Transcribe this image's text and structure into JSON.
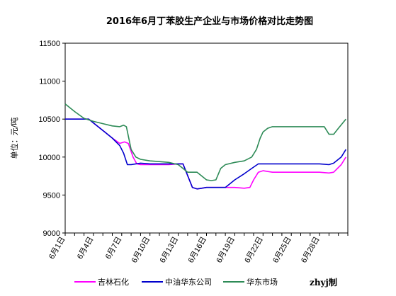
{
  "chart_data": {
    "type": "line",
    "title": "2016年6月丁苯胶生产企业与市场价格对比走势图",
    "ylabel": "单位：元/吨",
    "ylim": [
      9000,
      11500
    ],
    "yticks": [
      "9000",
      "9500",
      "10000",
      "10500",
      "11000",
      "11500"
    ],
    "xlim": [
      1,
      31
    ],
    "xticks": [
      {
        "day": 1,
        "label": "6月1日"
      },
      {
        "day": 4,
        "label": "6月4日"
      },
      {
        "day": 7,
        "label": "6月7日"
      },
      {
        "day": 10,
        "label": "6月10日"
      },
      {
        "day": 13,
        "label": "6月13日"
      },
      {
        "day": 16,
        "label": "6月16日"
      },
      {
        "day": 19,
        "label": "6月19日"
      },
      {
        "day": 22,
        "label": "6月22日"
      },
      {
        "day": 25,
        "label": "6月25日"
      },
      {
        "day": 28,
        "label": "6月28日"
      }
    ],
    "grid": false,
    "legend": "bottom",
    "credit": "zhyj制",
    "series": [
      {
        "name": "吉林石化",
        "color": "#ff00ff",
        "points": [
          [
            1,
            10500
          ],
          [
            2,
            10500
          ],
          [
            3,
            10500
          ],
          [
            3.5,
            10500
          ],
          [
            4,
            10450
          ],
          [
            5,
            10350
          ],
          [
            6,
            10250
          ],
          [
            6.8,
            10180
          ],
          [
            7.3,
            10200
          ],
          [
            7.7,
            10180
          ],
          [
            8.2,
            10000
          ],
          [
            8.6,
            9910
          ],
          [
            9,
            9900
          ],
          [
            10,
            9900
          ],
          [
            11,
            9900
          ],
          [
            12,
            9900
          ],
          [
            13,
            9910
          ],
          [
            13.5,
            9910
          ],
          [
            14.5,
            9600
          ],
          [
            15,
            9580
          ],
          [
            16,
            9600
          ],
          [
            17,
            9600
          ],
          [
            18,
            9600
          ],
          [
            19,
            9600
          ],
          [
            20,
            9590
          ],
          [
            20.6,
            9600
          ],
          [
            21,
            9700
          ],
          [
            21.5,
            9800
          ],
          [
            22,
            9820
          ],
          [
            23,
            9800
          ],
          [
            24,
            9800
          ],
          [
            25,
            9800
          ],
          [
            26,
            9800
          ],
          [
            27,
            9800
          ],
          [
            28,
            9800
          ],
          [
            29,
            9790
          ],
          [
            29.5,
            9800
          ],
          [
            30.3,
            9900
          ],
          [
            30.8,
            10000
          ]
        ]
      },
      {
        "name": "中油华东公司",
        "color": "#0000cc",
        "points": [
          [
            1,
            10500
          ],
          [
            2,
            10500
          ],
          [
            3,
            10500
          ],
          [
            3.5,
            10500
          ],
          [
            4,
            10450
          ],
          [
            5,
            10350
          ],
          [
            6,
            10250
          ],
          [
            6.8,
            10150
          ],
          [
            7.2,
            10050
          ],
          [
            7.6,
            9900
          ],
          [
            8,
            9900
          ],
          [
            8.5,
            9910
          ],
          [
            9,
            9920
          ],
          [
            10,
            9910
          ],
          [
            11,
            9910
          ],
          [
            12,
            9910
          ],
          [
            13,
            9910
          ],
          [
            13.5,
            9910
          ],
          [
            14.5,
            9600
          ],
          [
            15,
            9580
          ],
          [
            15.5,
            9590
          ],
          [
            16,
            9600
          ],
          [
            17,
            9600
          ],
          [
            18,
            9600
          ],
          [
            19,
            9700
          ],
          [
            20,
            9780
          ],
          [
            20.8,
            9850
          ],
          [
            21.5,
            9910
          ],
          [
            22,
            9910
          ],
          [
            23,
            9910
          ],
          [
            24,
            9910
          ],
          [
            25,
            9910
          ],
          [
            26,
            9910
          ],
          [
            27,
            9910
          ],
          [
            28,
            9910
          ],
          [
            29,
            9900
          ],
          [
            29.5,
            9920
          ],
          [
            30.3,
            10000
          ],
          [
            30.8,
            10100
          ]
        ]
      },
      {
        "name": "华东市场",
        "color": "#2e8b57",
        "points": [
          [
            1,
            10700
          ],
          [
            2,
            10600
          ],
          [
            3,
            10510
          ],
          [
            4,
            10470
          ],
          [
            5,
            10440
          ],
          [
            6,
            10410
          ],
          [
            6.8,
            10400
          ],
          [
            7.2,
            10420
          ],
          [
            7.5,
            10400
          ],
          [
            8,
            10100
          ],
          [
            8.5,
            10000
          ],
          [
            9,
            9970
          ],
          [
            10,
            9950
          ],
          [
            11,
            9940
          ],
          [
            12,
            9930
          ],
          [
            13,
            9900
          ],
          [
            13.5,
            9850
          ],
          [
            14,
            9800
          ],
          [
            14.5,
            9800
          ],
          [
            15,
            9800
          ],
          [
            16,
            9700
          ],
          [
            16.5,
            9690
          ],
          [
            17,
            9700
          ],
          [
            17.5,
            9850
          ],
          [
            18,
            9900
          ],
          [
            19,
            9930
          ],
          [
            20,
            9950
          ],
          [
            20.8,
            10000
          ],
          [
            21.3,
            10100
          ],
          [
            21.7,
            10250
          ],
          [
            22,
            10330
          ],
          [
            22.5,
            10380
          ],
          [
            23,
            10400
          ],
          [
            24,
            10400
          ],
          [
            25,
            10400
          ],
          [
            26,
            10400
          ],
          [
            27,
            10400
          ],
          [
            28,
            10400
          ],
          [
            28.5,
            10400
          ],
          [
            29,
            10300
          ],
          [
            29.5,
            10300
          ],
          [
            30,
            10380
          ],
          [
            30.8,
            10500
          ]
        ]
      }
    ]
  }
}
